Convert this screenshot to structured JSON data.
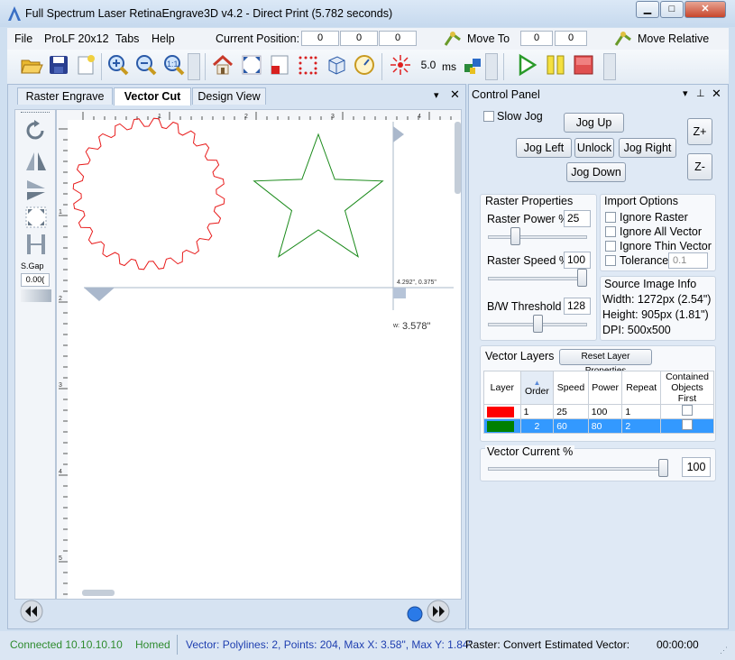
{
  "window": {
    "title": "Full Spectrum Laser RetinaEngrave3D v4.2 - Direct Print (5.782 seconds)"
  },
  "menubar": {
    "items": [
      "File",
      "ProLF 20x12",
      "Tabs",
      "Help"
    ],
    "current_position_label": "Current Position:",
    "current_position": [
      "0",
      "0",
      "0"
    ],
    "move_to_label": "Move To",
    "move_to": [
      "0",
      "0"
    ],
    "move_relative_label": "Move Relative"
  },
  "toolbar": {
    "laser_ms_value": "5.0",
    "laser_ms_unit": "ms"
  },
  "tabs": {
    "raster": "Raster Engrave",
    "vector": "Vector Cut",
    "design": "Design View"
  },
  "left_tools": {
    "sgap_label": "S.Gap",
    "sgap_value": "0.00("
  },
  "canvas": {
    "ruler_top": [
      "1",
      "2",
      "3",
      "4"
    ],
    "ruler_left": [
      "1",
      "2",
      "3",
      "4",
      "5"
    ],
    "coord_readout": "4.292\", 0.375\"",
    "width_prefix": "w:",
    "width_value": "3.578\""
  },
  "control_panel": {
    "title": "Control Panel",
    "slow_jog": "Slow Jog",
    "jog_up": "Jog Up",
    "jog_left": "Jog Left",
    "unlock": "Unlock",
    "jog_right": "Jog Right",
    "jog_down": "Jog Down",
    "z_plus": "Z+",
    "z_minus": "Z-",
    "raster_properties": {
      "title": "Raster Properties",
      "power_label": "Raster Power %",
      "power_value": "25",
      "speed_label": "Raster Speed %",
      "speed_value": "100",
      "threshold_label": "B/W Threshold",
      "threshold_value": "128",
      "power_level": 0.25,
      "speed_level": 1.0,
      "threshold_level": 0.5
    },
    "import_options": {
      "title": "Import Options",
      "ignore_raster": "Ignore Raster",
      "ignore_all_vector": "Ignore All Vector",
      "ignore_thin_vector": "Ignore Thin Vector",
      "tolerance": "Tolerance",
      "tolerance_value": "0.1"
    },
    "source_image": {
      "title": "Source Image Info",
      "width": "Width:  1272px (2.54\")",
      "height": "Height: 905px (1.81\")",
      "dpi": "DPI: 500x500"
    },
    "vector_layers": {
      "title": "Vector Layers",
      "reset_button": "Reset Layer Properties",
      "headers": [
        "Layer",
        "Order",
        "Speed",
        "Power",
        "Repeat",
        "Contained Objects First"
      ],
      "rows": [
        {
          "color": "#ff0000",
          "order": "1",
          "speed": "25",
          "power": "100",
          "repeat": "1"
        },
        {
          "color": "#008000",
          "order": "2",
          "speed": "60",
          "power": "80",
          "repeat": "2"
        }
      ]
    },
    "vector_current": {
      "title": "Vector Current %",
      "value": "100",
      "level": 1.0
    }
  },
  "statusbar": {
    "connected": "Connected 10.10.10.10",
    "homed": "Homed",
    "vector_info": "Vector: Polylines: 2, Points: 204, Max X: 3.58\", Max Y: 1.84\"",
    "raster": "Raster: Convert",
    "estimated_label": "Estimated Vector:",
    "estimated_time": "00:00:00"
  },
  "colors": {
    "accent": "#3a6fc4",
    "status_green": "#2e8b2e",
    "status_blue": "#1f3fb0",
    "selected_row": "#3399ff"
  }
}
